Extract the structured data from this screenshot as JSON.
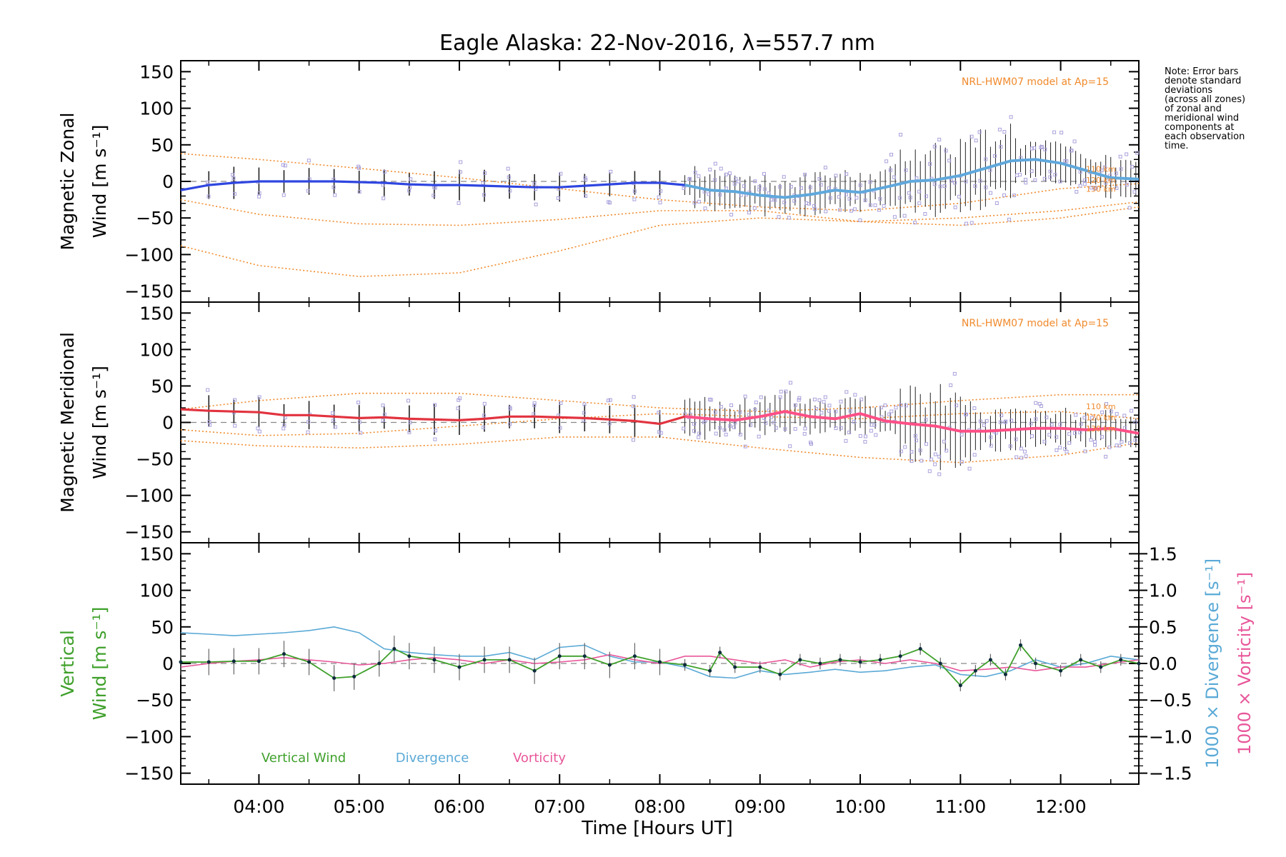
{
  "title": "Eagle Alaska: 22-Nov-2016, λ=557.7 nm",
  "note_lines": [
    "Note: Error bars",
    "denote standard",
    "deviations",
    "(across all zones)",
    "of zonal and",
    "meridional wind",
    "components at",
    "each observation",
    "time."
  ],
  "model_label": "NRL-HWM07 model at Ap=15",
  "altitude_labels": [
    "110 km",
    "120 km",
    "130 km"
  ],
  "x_axis": {
    "label": "Time [Hours UT]",
    "range_hours": [
      3.22,
      12.78
    ],
    "ticks": [
      {
        "value": 4,
        "label": "04:00"
      },
      {
        "value": 5,
        "label": "05:00"
      },
      {
        "value": 6,
        "label": "06:00"
      },
      {
        "value": 7,
        "label": "07:00"
      },
      {
        "value": 8,
        "label": "08:00"
      },
      {
        "value": 9,
        "label": "09:00"
      },
      {
        "value": 10,
        "label": "10:00"
      },
      {
        "value": 11,
        "label": "11:00"
      },
      {
        "value": 12,
        "label": "12:00"
      }
    ]
  },
  "colors": {
    "zonal": "#2f46e0",
    "zonal_light": "#5fa8dc",
    "meridional": "#e2333f",
    "meridional_light": "#ff4f86",
    "vertical": "#3fa02b",
    "divergence": "#5aa9d6",
    "vorticity": "#e8579a",
    "model": "#f08a2c",
    "scatter": "#a9a2dc"
  },
  "chart_data": [
    {
      "type": "line",
      "panel": "zonal",
      "ylabel_line1": "Magnetic Zonal",
      "ylabel_line2": "Wind [m s⁻¹]",
      "ylim": [
        -165,
        165
      ],
      "yticks": [
        -150,
        -100,
        -50,
        0,
        50,
        100,
        150
      ],
      "series": [
        {
          "x": [
            3.22,
            3.5,
            3.75,
            4.0,
            4.25,
            4.5,
            4.75,
            5.0,
            5.25,
            5.5,
            5.75,
            6.0,
            6.25,
            6.5,
            6.75,
            7.0,
            7.25,
            7.5,
            7.75,
            8.0,
            8.25,
            8.5,
            8.75,
            9.0,
            9.25,
            9.5,
            9.75,
            10.0,
            10.25,
            10.5,
            10.75,
            11.0,
            11.25,
            11.5,
            11.75,
            12.0,
            12.25,
            12.5,
            12.78
          ],
          "values": [
            -12,
            -5,
            -2,
            0,
            0,
            0,
            0,
            -1,
            -2,
            -4,
            -5,
            -5,
            -6,
            -7,
            -8,
            -8,
            -6,
            -4,
            -2,
            -2,
            -5,
            -12,
            -14,
            -19,
            -22,
            -18,
            -12,
            -15,
            -8,
            0,
            2,
            8,
            18,
            28,
            30,
            25,
            15,
            5,
            3
          ]
        }
      ],
      "model_curves": [
        {
          "name": "110 km",
          "x": [
            3.22,
            4,
            5,
            6,
            7,
            8,
            9,
            10,
            11,
            12,
            12.78
          ],
          "values": [
            38,
            30,
            18,
            5,
            -10,
            -25,
            -35,
            -40,
            -30,
            -10,
            -3
          ]
        },
        {
          "name": "120 km",
          "x": [
            3.22,
            4,
            5,
            6,
            7,
            8,
            9,
            10,
            11,
            12,
            12.78
          ],
          "values": [
            -25,
            -45,
            -58,
            -60,
            -52,
            -40,
            -40,
            -55,
            -60,
            -50,
            -35
          ]
        },
        {
          "name": "130 km",
          "x": [
            3.22,
            4,
            5,
            6,
            7,
            8,
            9,
            10,
            11,
            12,
            12.78
          ],
          "values": [
            -88,
            -115,
            -130,
            -125,
            -95,
            -60,
            -50,
            -55,
            -50,
            -40,
            -28
          ]
        }
      ]
    },
    {
      "type": "line",
      "panel": "meridional",
      "ylabel_line1": "Magnetic Meridional",
      "ylabel_line2": "Wind [m s⁻¹]",
      "ylim": [
        -165,
        165
      ],
      "yticks": [
        -150,
        -100,
        -50,
        0,
        50,
        100,
        150
      ],
      "series": [
        {
          "x": [
            3.22,
            3.5,
            3.75,
            4.0,
            4.25,
            4.5,
            4.75,
            5.0,
            5.25,
            5.5,
            5.75,
            6.0,
            6.25,
            6.5,
            6.75,
            7.0,
            7.25,
            7.5,
            7.75,
            8.0,
            8.25,
            8.5,
            8.75,
            9.0,
            9.25,
            9.5,
            9.75,
            10.0,
            10.25,
            10.5,
            10.75,
            11.0,
            11.25,
            11.5,
            11.75,
            12.0,
            12.25,
            12.5,
            12.78
          ],
          "values": [
            18,
            16,
            15,
            14,
            10,
            10,
            8,
            6,
            7,
            5,
            4,
            3,
            5,
            8,
            8,
            7,
            6,
            4,
            2,
            -2,
            8,
            5,
            3,
            8,
            15,
            8,
            5,
            12,
            2,
            -2,
            -5,
            -12,
            -12,
            -10,
            -8,
            -8,
            -10,
            -8,
            -15
          ]
        }
      ],
      "model_curves": [
        {
          "name": "110 km",
          "x": [
            3.22,
            4,
            5,
            6,
            7,
            8,
            9,
            10,
            11,
            12,
            12.78
          ],
          "values": [
            18,
            30,
            40,
            40,
            30,
            20,
            15,
            20,
            30,
            38,
            38
          ]
        },
        {
          "name": "120 km",
          "x": [
            3.22,
            4,
            5,
            6,
            7,
            8,
            9,
            10,
            11,
            12,
            12.78
          ],
          "values": [
            -10,
            -18,
            -15,
            -5,
            5,
            12,
            8,
            5,
            12,
            15,
            5
          ]
        },
        {
          "name": "130 km",
          "x": [
            3.22,
            4,
            5,
            6,
            7,
            8,
            9,
            10,
            11,
            12,
            12.78
          ],
          "values": [
            -25,
            -32,
            -35,
            -30,
            -20,
            -20,
            -35,
            -48,
            -55,
            -45,
            -28
          ]
        }
      ]
    },
    {
      "type": "line",
      "panel": "vertical",
      "ylabel_line1": "Vertical",
      "ylabel_line2": "Wind [m s⁻¹]",
      "ylim": [
        -165,
        165
      ],
      "yticks": [
        -150,
        -100,
        -50,
        0,
        50,
        100,
        150
      ],
      "right_axis": {
        "ylim": [
          -1.65,
          1.65
        ],
        "ticks": [
          -1.5,
          -1.0,
          -0.5,
          0.0,
          0.5,
          1.0,
          1.5
        ],
        "tick_labels": [
          "−1.5",
          "−1.0",
          "−0.5",
          "0.0",
          "0.5",
          "1.0",
          "1.5"
        ],
        "label_divergence": "1000 × Divergence [s⁻¹]",
        "label_vorticity": "1000 × Vorticity [s⁻¹]"
      },
      "legend": [
        "Vertical Wind",
        "Divergence",
        "Vorticity"
      ],
      "series": [
        {
          "name": "Vertical Wind",
          "x": [
            3.22,
            3.5,
            3.75,
            4.0,
            4.25,
            4.5,
            4.75,
            4.95,
            5.2,
            5.35,
            5.5,
            5.75,
            6.0,
            6.25,
            6.5,
            6.75,
            7.0,
            7.25,
            7.5,
            7.75,
            8.0,
            8.25,
            8.5,
            8.6,
            8.75,
            9.0,
            9.2,
            9.4,
            9.6,
            9.8,
            10.0,
            10.2,
            10.4,
            10.6,
            10.8,
            11.0,
            11.15,
            11.3,
            11.45,
            11.6,
            11.75,
            12.0,
            12.2,
            12.4,
            12.6,
            12.78
          ],
          "values": [
            2,
            2,
            3,
            3,
            13,
            2,
            -20,
            -18,
            0,
            20,
            10,
            5,
            -5,
            5,
            5,
            -10,
            10,
            10,
            -2,
            10,
            2,
            -2,
            -10,
            15,
            -5,
            -5,
            -15,
            5,
            0,
            5,
            2,
            5,
            10,
            20,
            0,
            -30,
            -10,
            5,
            -15,
            25,
            0,
            -10,
            5,
            -5,
            5,
            0
          ]
        },
        {
          "name": "Divergence",
          "x": [
            3.22,
            3.5,
            3.75,
            4.0,
            4.25,
            4.5,
            4.75,
            5.0,
            5.25,
            5.5,
            5.75,
            6.0,
            6.25,
            6.5,
            6.75,
            7.0,
            7.25,
            7.5,
            7.75,
            8.0,
            8.25,
            8.5,
            8.75,
            9.0,
            9.25,
            9.5,
            9.75,
            10.0,
            10.25,
            10.5,
            10.75,
            11.0,
            11.25,
            11.5,
            11.75,
            12.0,
            12.25,
            12.5,
            12.78
          ],
          "values": [
            0.42,
            0.4,
            0.38,
            0.4,
            0.42,
            0.45,
            0.5,
            0.42,
            0.2,
            0.15,
            0.12,
            0.1,
            0.1,
            0.15,
            0.05,
            0.22,
            0.25,
            0.1,
            0.02,
            0.02,
            -0.05,
            -0.18,
            -0.2,
            -0.1,
            -0.15,
            -0.12,
            -0.08,
            -0.12,
            -0.1,
            -0.05,
            -0.02,
            -0.15,
            -0.18,
            -0.1,
            0.05,
            -0.05,
            0.0,
            0.1,
            0.05
          ]
        },
        {
          "name": "Vorticity",
          "x": [
            3.22,
            3.5,
            3.75,
            4.0,
            4.25,
            4.5,
            4.75,
            5.0,
            5.25,
            5.5,
            5.75,
            6.0,
            6.25,
            6.5,
            6.75,
            7.0,
            7.25,
            7.5,
            7.75,
            8.0,
            8.25,
            8.5,
            8.75,
            9.0,
            9.25,
            9.5,
            9.75,
            10.0,
            10.25,
            10.5,
            10.75,
            11.0,
            11.25,
            11.5,
            11.75,
            12.0,
            12.25,
            12.5,
            12.78
          ],
          "values": [
            -0.05,
            0.0,
            0.03,
            0.05,
            0.08,
            0.05,
            0.02,
            -0.02,
            0.0,
            0.05,
            0.08,
            0.05,
            0.0,
            0.05,
            0.0,
            0.02,
            0.05,
            0.12,
            0.05,
            0.0,
            0.1,
            0.1,
            0.05,
            0.0,
            0.05,
            -0.05,
            0.02,
            0.05,
            0.0,
            0.05,
            0.0,
            -0.1,
            -0.08,
            -0.05,
            -0.1,
            -0.05,
            -0.05,
            0.0,
            0.05
          ]
        }
      ]
    }
  ]
}
